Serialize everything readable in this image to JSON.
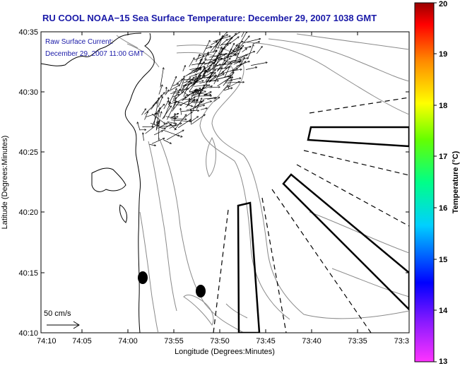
{
  "title": "RU COOL  NOAA−15  Sea Surface Temperature:  December 29, 2007 1038 GMT",
  "current_note": {
    "line1": "Raw Surface Current:",
    "line2": "December 29, 2007 11:00 GMT"
  },
  "scale_label": "50 cm/s",
  "x_axis": {
    "label": "Longitude (Degrees:Minutes)",
    "ticks": [
      "74:10",
      "74:05",
      "74:00",
      "73:55",
      "73:50",
      "73:45",
      "73:40",
      "73:35",
      "73:3"
    ]
  },
  "y_axis": {
    "label": "Latitude (Degrees:Minutes)",
    "ticks": [
      "40:35",
      "40:30",
      "40:25",
      "40:20",
      "40:15",
      "40:10"
    ]
  },
  "colorbar": {
    "label": "Temperature (°C)",
    "ticks": [
      "20",
      "19",
      "18",
      "17",
      "16",
      "15",
      "14",
      "13"
    ],
    "colors": [
      "#ff00ff",
      "#8800ff",
      "#0000ff",
      "#00ffff",
      "#00ff00",
      "#ffff00",
      "#ff8800",
      "#ff0000",
      "#880000"
    ]
  }
}
